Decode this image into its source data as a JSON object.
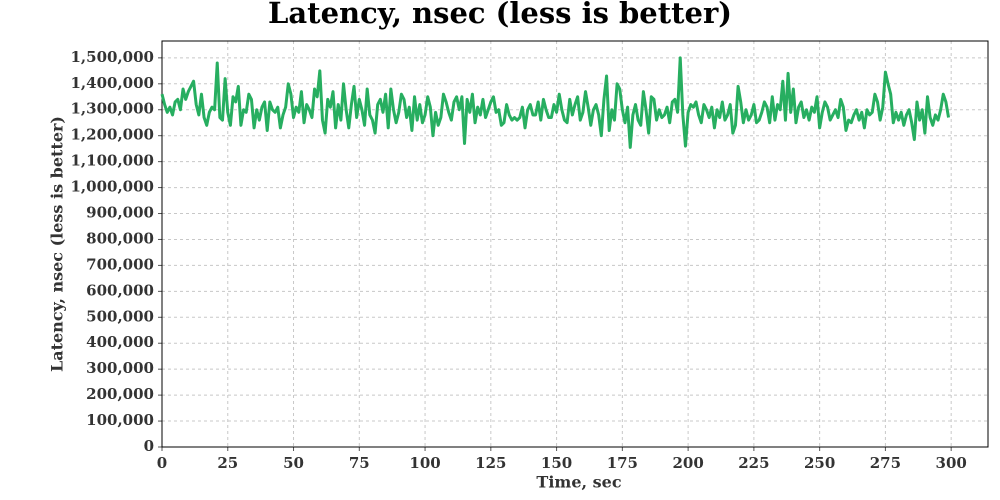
{
  "chart_data": {
    "type": "line",
    "title": "Latency, nsec (less is better)",
    "xlabel": "Time, sec",
    "ylabel": "Latency, nsec (less is better)",
    "x": [
      0,
      1,
      2,
      3,
      4,
      5,
      6,
      7,
      8,
      9,
      10,
      11,
      12,
      13,
      14,
      15,
      16,
      17,
      18,
      19,
      20,
      21,
      22,
      23,
      24,
      25,
      26,
      27,
      28,
      29,
      30,
      31,
      32,
      33,
      34,
      35,
      36,
      37,
      38,
      39,
      40,
      41,
      42,
      43,
      44,
      45,
      46,
      47,
      48,
      49,
      50,
      51,
      52,
      53,
      54,
      55,
      56,
      57,
      58,
      59,
      60,
      61,
      62,
      63,
      64,
      65,
      66,
      67,
      68,
      69,
      70,
      71,
      72,
      73,
      74,
      75,
      76,
      77,
      78,
      79,
      80,
      81,
      82,
      83,
      84,
      85,
      86,
      87,
      88,
      89,
      90,
      91,
      92,
      93,
      94,
      95,
      96,
      97,
      98,
      99,
      100,
      101,
      102,
      103,
      104,
      105,
      106,
      107,
      108,
      109,
      110,
      111,
      112,
      113,
      114,
      115,
      116,
      117,
      118,
      119,
      120,
      121,
      122,
      123,
      124,
      125,
      126,
      127,
      128,
      129,
      130,
      131,
      132,
      133,
      134,
      135,
      136,
      137,
      138,
      139,
      140,
      141,
      142,
      143,
      144,
      145,
      146,
      147,
      148,
      149,
      150,
      151,
      152,
      153,
      154,
      155,
      156,
      157,
      158,
      159,
      160,
      161,
      162,
      163,
      164,
      165,
      166,
      167,
      168,
      169,
      170,
      171,
      172,
      173,
      174,
      175,
      176,
      177,
      178,
      179,
      180,
      181,
      182,
      183,
      184,
      185,
      186,
      187,
      188,
      189,
      190,
      191,
      192,
      193,
      194,
      195,
      196,
      197,
      198,
      199,
      200,
      201,
      202,
      203,
      204,
      205,
      206,
      207,
      208,
      209,
      210,
      211,
      212,
      213,
      214,
      215,
      216,
      217,
      218,
      219,
      220,
      221,
      222,
      223,
      224,
      225,
      226,
      227,
      228,
      229,
      230,
      231,
      232,
      233,
      234,
      235,
      236,
      237,
      238,
      239,
      240,
      241,
      242,
      243,
      244,
      245,
      246,
      247,
      248,
      249,
      250,
      251,
      252,
      253,
      254,
      255,
      256,
      257,
      258,
      259,
      260,
      261,
      262,
      263,
      264,
      265,
      266,
      267,
      268,
      269,
      270,
      271,
      272,
      273,
      274,
      275,
      276,
      277,
      278,
      279,
      280,
      281,
      282,
      283,
      284,
      285,
      286,
      287,
      288,
      289,
      290,
      291,
      292,
      293,
      294,
      295,
      296,
      297,
      298,
      299
    ],
    "series": [
      {
        "name": "Latency",
        "color": "#27ae60",
        "values": [
          1360000,
          1320000,
          1290000,
          1310000,
          1280000,
          1330000,
          1340000,
          1300000,
          1380000,
          1340000,
          1370000,
          1390000,
          1410000,
          1320000,
          1280000,
          1360000,
          1270000,
          1240000,
          1290000,
          1310000,
          1300000,
          1480000,
          1270000,
          1260000,
          1420000,
          1290000,
          1240000,
          1350000,
          1330000,
          1390000,
          1240000,
          1300000,
          1290000,
          1360000,
          1340000,
          1230000,
          1300000,
          1260000,
          1310000,
          1330000,
          1220000,
          1330000,
          1300000,
          1290000,
          1310000,
          1230000,
          1280000,
          1310000,
          1400000,
          1360000,
          1270000,
          1310000,
          1290000,
          1370000,
          1250000,
          1320000,
          1300000,
          1270000,
          1380000,
          1350000,
          1450000,
          1260000,
          1210000,
          1340000,
          1310000,
          1370000,
          1230000,
          1320000,
          1260000,
          1400000,
          1300000,
          1230000,
          1320000,
          1390000,
          1270000,
          1340000,
          1300000,
          1240000,
          1380000,
          1280000,
          1260000,
          1210000,
          1320000,
          1340000,
          1290000,
          1360000,
          1230000,
          1380000,
          1300000,
          1250000,
          1290000,
          1360000,
          1340000,
          1270000,
          1310000,
          1220000,
          1350000,
          1260000,
          1320000,
          1250000,
          1280000,
          1350000,
          1310000,
          1200000,
          1290000,
          1240000,
          1270000,
          1360000,
          1330000,
          1290000,
          1260000,
          1330000,
          1350000,
          1300000,
          1350000,
          1170000,
          1340000,
          1290000,
          1360000,
          1250000,
          1310000,
          1280000,
          1340000,
          1270000,
          1300000,
          1330000,
          1350000,
          1290000,
          1300000,
          1240000,
          1250000,
          1320000,
          1280000,
          1260000,
          1270000,
          1260000,
          1270000,
          1310000,
          1230000,
          1300000,
          1320000,
          1280000,
          1280000,
          1330000,
          1260000,
          1340000,
          1300000,
          1270000,
          1270000,
          1320000,
          1290000,
          1360000,
          1300000,
          1260000,
          1250000,
          1340000,
          1280000,
          1320000,
          1350000,
          1260000,
          1290000,
          1370000,
          1310000,
          1240000,
          1300000,
          1320000,
          1280000,
          1200000,
          1340000,
          1430000,
          1220000,
          1300000,
          1260000,
          1400000,
          1380000,
          1300000,
          1250000,
          1310000,
          1155000,
          1280000,
          1320000,
          1260000,
          1240000,
          1370000,
          1300000,
          1210000,
          1350000,
          1340000,
          1260000,
          1300000,
          1270000,
          1280000,
          1310000,
          1250000,
          1330000,
          1340000,
          1290000,
          1500000,
          1280000,
          1160000,
          1290000,
          1320000,
          1310000,
          1330000,
          1280000,
          1250000,
          1320000,
          1300000,
          1270000,
          1310000,
          1230000,
          1300000,
          1270000,
          1330000,
          1260000,
          1280000,
          1320000,
          1210000,
          1240000,
          1390000,
          1330000,
          1250000,
          1300000,
          1260000,
          1280000,
          1320000,
          1250000,
          1260000,
          1290000,
          1330000,
          1310000,
          1250000,
          1350000,
          1260000,
          1320000,
          1300000,
          1410000,
          1260000,
          1440000,
          1290000,
          1380000,
          1250000,
          1310000,
          1330000,
          1270000,
          1300000,
          1260000,
          1310000,
          1290000,
          1350000,
          1230000,
          1290000,
          1330000,
          1310000,
          1260000,
          1280000,
          1300000,
          1270000,
          1340000,
          1310000,
          1220000,
          1260000,
          1250000,
          1280000,
          1300000,
          1260000,
          1290000,
          1230000,
          1300000,
          1280000,
          1290000,
          1360000,
          1330000,
          1260000,
          1310000,
          1445000,
          1400000,
          1360000,
          1250000,
          1290000,
          1260000,
          1290000,
          1240000,
          1280000,
          1300000,
          1250000,
          1185000,
          1330000,
          1260000,
          1300000,
          1210000,
          1350000,
          1270000,
          1240000,
          1280000,
          1260000,
          1300000,
          1360000,
          1330000,
          1270000
        ]
      }
    ],
    "xlim": [
      0,
      314
    ],
    "xticks": [
      0,
      25,
      50,
      75,
      100,
      125,
      150,
      175,
      200,
      225,
      250,
      275,
      300
    ],
    "ylim": [
      0,
      1565000
    ],
    "yticks": [
      0,
      {
        "value": 100000,
        "label": "100,000"
      },
      {
        "value": 200000,
        "label": "200,000"
      },
      {
        "value": 300000,
        "label": "300,000"
      },
      {
        "value": 400000,
        "label": "400,000"
      },
      {
        "value": 500000,
        "label": "500,000"
      },
      {
        "value": 600000,
        "label": "600,000"
      },
      {
        "value": 700000,
        "label": "700,000"
      },
      {
        "value": 800000,
        "label": "800,000"
      },
      {
        "value": 900000,
        "label": "900,000"
      },
      {
        "value": 1000000,
        "label": "1,000,000"
      },
      {
        "value": 1100000,
        "label": "1,100,000"
      },
      {
        "value": 1200000,
        "label": "1,200,000"
      },
      {
        "value": 1300000,
        "label": "1,300,000"
      },
      {
        "value": 1400000,
        "label": "1,400,000"
      },
      {
        "value": 1500000,
        "label": "1,500,000"
      }
    ],
    "grid": true
  }
}
